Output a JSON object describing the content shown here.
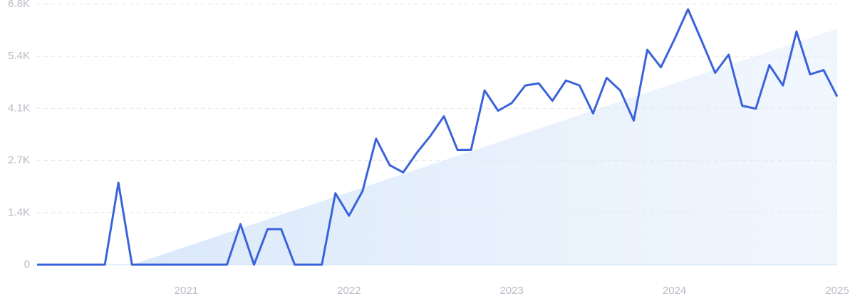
{
  "chart_data": {
    "type": "line",
    "categories": [
      null,
      null,
      null,
      null,
      null,
      null,
      null,
      null,
      null,
      null,
      null,
      "2021",
      null,
      null,
      null,
      null,
      null,
      null,
      null,
      null,
      null,
      null,
      null,
      "2022",
      null,
      null,
      null,
      null,
      null,
      null,
      null,
      null,
      null,
      null,
      null,
      "2023",
      null,
      null,
      null,
      null,
      null,
      null,
      null,
      null,
      null,
      null,
      null,
      "2024",
      null,
      null,
      null,
      null,
      null,
      null,
      null,
      null,
      null,
      null,
      null,
      "2025"
    ],
    "series": [
      {
        "color": "#3b63d9",
        "values": [
          0,
          0,
          0,
          0,
          0,
          0,
          2140,
          0,
          0,
          0,
          0,
          0,
          0,
          0,
          0,
          1060,
          0,
          930,
          930,
          0,
          0,
          0,
          1865,
          1280,
          1920,
          3290,
          2600,
          2410,
          2920,
          3360,
          3875,
          3000,
          3000,
          4550,
          4020,
          4220,
          4680,
          4735,
          4280,
          4810,
          4680,
          3950,
          4880,
          4550,
          3765,
          5610,
          5155,
          5885,
          6670,
          5850,
          5010,
          5485,
          4150,
          4075,
          5210,
          4680,
          6090,
          4970,
          5080,
          4390
        ]
      }
    ],
    "trend": {
      "color": "#dbe8fb",
      "values": [
        null,
        null,
        null,
        null,
        null,
        null,
        null,
        0,
        118,
        237,
        355,
        474,
        592,
        711,
        829,
        948,
        1066,
        1185,
        1303,
        1422,
        1540,
        1658,
        1777,
        1895,
        2014,
        2132,
        2251,
        2369,
        2488,
        2606,
        2725,
        2843,
        2962,
        3080,
        3198,
        3317,
        3435,
        3554,
        3672,
        3791,
        3909,
        4028,
        4146,
        4265,
        4383,
        4502,
        4620,
        4738,
        4857,
        4975,
        5094,
        5212,
        5331,
        5449,
        5568,
        5686,
        5805,
        5923,
        6042,
        6160
      ]
    },
    "ylim": [
      0,
      6800
    ],
    "yticks": [
      0,
      {
        "value": 1360,
        "label": "1.4K"
      },
      {
        "value": 2720,
        "label": "2.7K"
      },
      {
        "value": 4080,
        "label": "4.1K"
      },
      {
        "value": 5440,
        "label": "5.4K"
      },
      {
        "value": 6800,
        "label": "6.8K"
      }
    ],
    "grid": true
  }
}
